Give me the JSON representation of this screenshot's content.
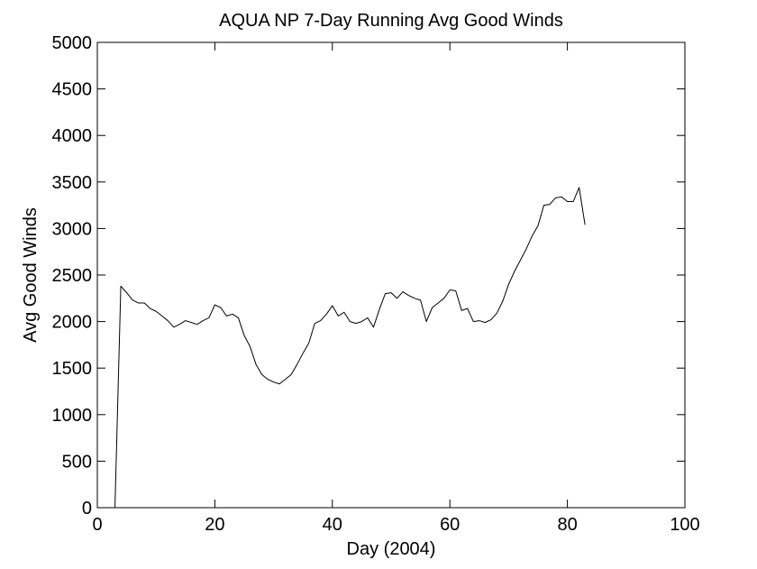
{
  "chart_data": {
    "type": "line",
    "title": "AQUA NP 7-Day Running Avg Good Winds",
    "xlabel": "Day (2004)",
    "ylabel": "Avg Good Winds",
    "xlim": [
      0,
      100
    ],
    "ylim": [
      0,
      5000
    ],
    "xticks": [
      0,
      20,
      40,
      60,
      80,
      100
    ],
    "xtick_labels": [
      "0",
      "20",
      "40",
      "60",
      "80",
      "100"
    ],
    "yticks": [
      0,
      500,
      1000,
      1500,
      2000,
      2500,
      3000,
      3500,
      4000,
      4500,
      5000
    ],
    "ytick_labels": [
      "0",
      "500",
      "1000",
      "1500",
      "2000",
      "2500",
      "3000",
      "3500",
      "4000",
      "4500",
      "5000"
    ],
    "grid": false,
    "legend": "none",
    "line_color": "#000000",
    "series": [
      {
        "x": [
          3,
          4,
          5,
          6,
          7,
          8,
          9,
          10,
          11,
          12,
          13,
          14,
          15,
          16,
          17,
          18,
          19,
          20,
          21,
          22,
          23,
          24,
          25,
          26,
          27,
          28,
          29,
          30,
          31,
          32,
          33,
          34,
          35,
          36,
          37,
          38,
          39,
          40,
          41,
          42,
          43,
          44,
          45,
          46,
          47,
          48,
          49,
          50,
          51,
          52,
          53,
          54,
          55,
          56,
          57,
          58,
          59,
          60,
          61,
          62,
          63,
          64,
          65,
          66,
          67,
          68,
          69,
          70,
          71,
          72,
          73,
          74,
          75,
          76,
          77,
          78,
          79,
          80,
          81,
          82,
          83
        ],
        "y": [
          0,
          2380,
          2310,
          2230,
          2200,
          2200,
          2140,
          2110,
          2060,
          2010,
          1940,
          1970,
          2010,
          1990,
          1970,
          2010,
          2040,
          2180,
          2150,
          2060,
          2080,
          2040,
          1850,
          1730,
          1540,
          1430,
          1380,
          1350,
          1330,
          1380,
          1430,
          1540,
          1660,
          1770,
          1980,
          2010,
          2080,
          2170,
          2060,
          2100,
          2000,
          1980,
          2000,
          2040,
          1940,
          2130,
          2300,
          2310,
          2250,
          2320,
          2280,
          2250,
          2230,
          2000,
          2150,
          2200,
          2250,
          2340,
          2330,
          2120,
          2140,
          2000,
          2010,
          1990,
          2020,
          2090,
          2220,
          2400,
          2540,
          2660,
          2780,
          2920,
          3030,
          3250,
          3260,
          3330,
          3340,
          3290,
          3290,
          3440,
          3040
        ]
      }
    ]
  }
}
